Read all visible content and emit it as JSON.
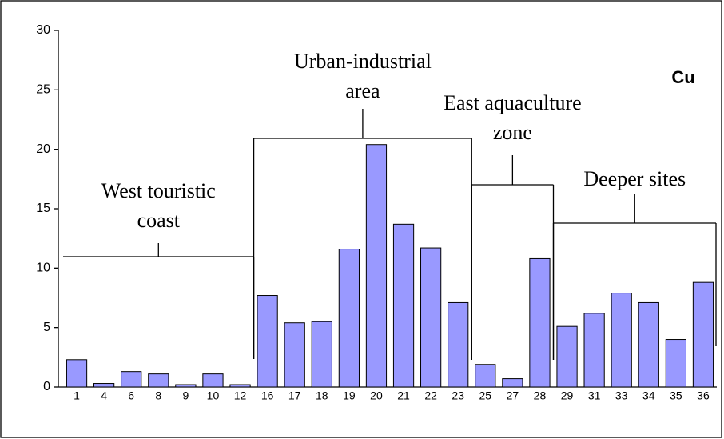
{
  "chart_data": {
    "type": "bar",
    "title": "Cu",
    "categories": [
      "1",
      "4",
      "6",
      "8",
      "9",
      "10",
      "12",
      "16",
      "17",
      "18",
      "19",
      "20",
      "21",
      "22",
      "23",
      "25",
      "27",
      "28",
      "29",
      "31",
      "33",
      "34",
      "35",
      "36"
    ],
    "values": [
      2.3,
      0.3,
      1.3,
      1.1,
      0.2,
      1.1,
      0.2,
      7.7,
      5.4,
      5.5,
      11.6,
      20.4,
      13.7,
      11.7,
      7.1,
      1.9,
      0.7,
      10.8,
      5.1,
      6.2,
      7.9,
      7.1,
      4.0,
      8.8
    ],
    "color": "#9999ff",
    "ylim": [
      0,
      30
    ],
    "yticks": [
      0,
      5,
      10,
      15,
      20,
      25,
      30
    ],
    "grid": false,
    "groups": [
      {
        "label": [
          "West touristic",
          "coast"
        ]
      },
      {
        "label": [
          "Urban-industrial",
          "area"
        ]
      },
      {
        "label": [
          "East aquaculture",
          "zone"
        ]
      },
      {
        "label": [
          "Deeper sites"
        ]
      }
    ]
  }
}
